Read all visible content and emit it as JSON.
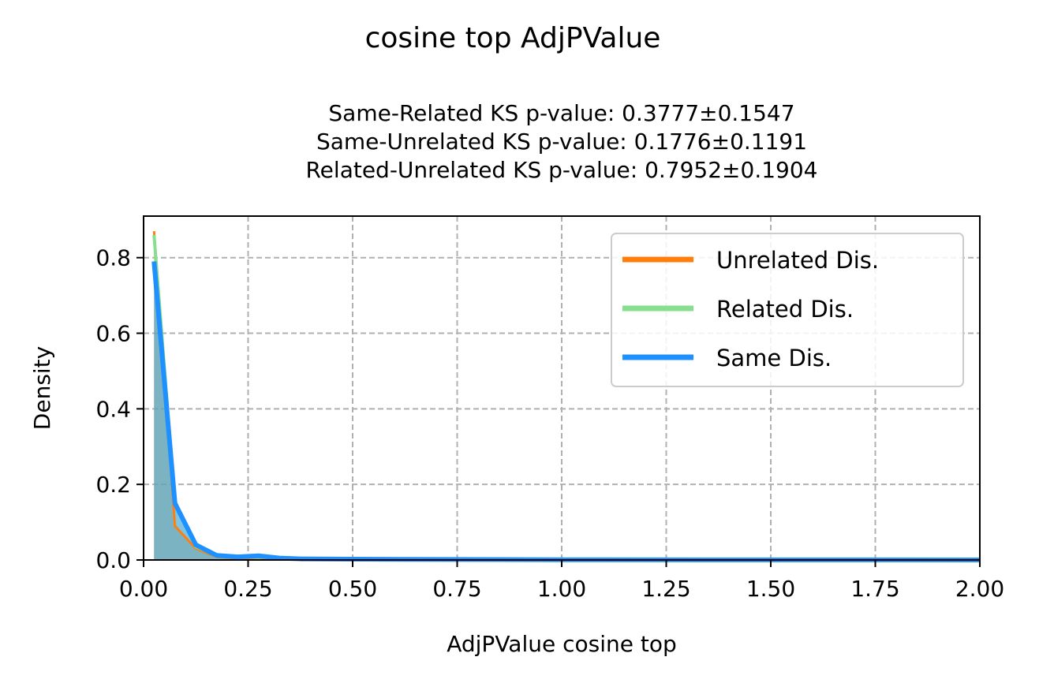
{
  "chart_data": {
    "type": "area",
    "title": "cosine top AdjPValue",
    "subtitle_lines": [
      "Same-Related KS p-value: 0.3777±0.1547",
      "Same-Unrelated KS p-value: 0.1776±0.1191",
      "Related-Unrelated KS p-value: 0.7952±0.1904"
    ],
    "xlabel": "AdjPValue cosine top",
    "ylabel": "Density",
    "xlim": [
      0,
      2
    ],
    "ylim": [
      0,
      0.91
    ],
    "x_ticks": [
      "0.00",
      "0.25",
      "0.50",
      "0.75",
      "1.00",
      "1.25",
      "1.50",
      "1.75",
      "2.00"
    ],
    "y_ticks": [
      "0.0",
      "0.2",
      "0.4",
      "0.6",
      "0.8"
    ],
    "grid": true,
    "legend_placement": "top-right",
    "series": [
      {
        "name": "Unrelated Dis.",
        "color": "#ff7f0e",
        "x": [
          0.025,
          0.075,
          0.125,
          0.175,
          0.225,
          0.275,
          0.325,
          0.375,
          0.5,
          1.0,
          1.5,
          2.0
        ],
        "y": [
          0.87,
          0.09,
          0.03,
          0.008,
          0.004,
          0.003,
          0.002,
          0.001,
          0.0005,
          0.0002,
          0.0001,
          0.0001
        ]
      },
      {
        "name": "Related Dis.",
        "color": "#86de8e",
        "x": [
          0.025,
          0.075,
          0.125,
          0.175,
          0.225,
          0.275,
          0.325,
          0.375,
          0.5,
          1.0,
          1.5,
          2.0
        ],
        "y": [
          0.86,
          0.15,
          0.035,
          0.012,
          0.008,
          0.007,
          0.006,
          0.004,
          0.002,
          0.0005,
          0.0002,
          0.0001
        ]
      },
      {
        "name": "Same Dis.",
        "color": "#1e90ff",
        "x": [
          0.025,
          0.075,
          0.125,
          0.175,
          0.225,
          0.275,
          0.325,
          0.375,
          0.5,
          1.0,
          1.5,
          2.0
        ],
        "y": [
          0.79,
          0.15,
          0.04,
          0.012,
          0.008,
          0.011,
          0.005,
          0.003,
          0.002,
          0.0005,
          0.0002,
          0.0001
        ]
      }
    ]
  }
}
